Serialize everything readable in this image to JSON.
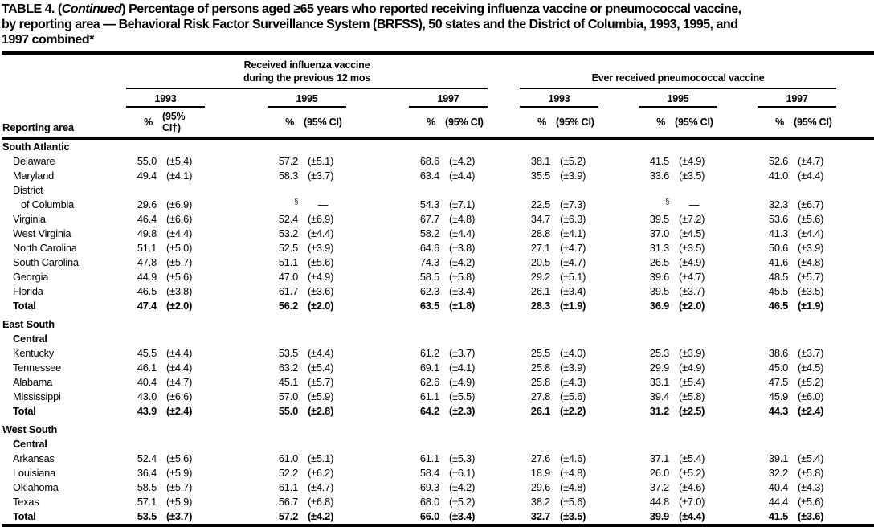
{
  "title_lines": [
    {
      "pre": "TABLE 4. (",
      "italic": "Continued",
      "post": ") Percentage of persons aged ≥65 years who reported receiving influenza vaccine or pneumococcal vaccine,"
    },
    {
      "text": "by reporting area — Behavioral Risk Factor Surveillance System (BRFSS), 50 states and the District of Columbia, 1993, 1995, and"
    },
    {
      "text": "1997 combined*"
    }
  ],
  "table": {
    "row_label_header": "Reporting area",
    "missing_marker": "§",
    "missing_dash": "—",
    "groups": [
      {
        "name": "influenza",
        "title_lines": [
          "Received influenza vaccine",
          "during the previous 12 mos"
        ],
        "years": [
          {
            "year": "1993",
            "pct": "%",
            "ci": "(95% CI†)"
          },
          {
            "year": "1995",
            "pct": "%",
            "ci": "(95% CI)"
          },
          {
            "year": "1997",
            "pct": "%",
            "ci": "(95% CI)"
          }
        ]
      },
      {
        "name": "pneumococcal",
        "title_lines": [
          "Ever received pneumococcal vaccine"
        ],
        "years": [
          {
            "year": "1993",
            "pct": "%",
            "ci": "(95% CI)"
          },
          {
            "year": "1995",
            "pct": "%",
            "ci": "(95% CI)"
          },
          {
            "year": "1997",
            "pct": "%",
            "ci": "(95% CI)"
          }
        ]
      }
    ],
    "sections": [
      {
        "heading_lines": [
          "South Atlantic"
        ],
        "rows": [
          {
            "label_lines": [
              "Delaware"
            ],
            "total": false,
            "cells": [
              [
                "55.0",
                "(±5.4)"
              ],
              [
                "57.2",
                "(±5.1)"
              ],
              [
                "68.6",
                "(±4.2)"
              ],
              [
                "38.1",
                "(±5.2)"
              ],
              [
                "41.5",
                "(±4.9)"
              ],
              [
                "52.6",
                "(±4.7)"
              ]
            ]
          },
          {
            "label_lines": [
              "Maryland"
            ],
            "total": false,
            "cells": [
              [
                "49.4",
                "(±4.1)"
              ],
              [
                "58.3",
                "(±3.7)"
              ],
              [
                "63.4",
                "(±4.4)"
              ],
              [
                "35.5",
                "(±3.9)"
              ],
              [
                "33.6",
                "(±3.5)"
              ],
              [
                "41.0",
                "(±4.4)"
              ]
            ]
          },
          {
            "label_lines": [
              "District",
              "of Columbia"
            ],
            "total": false,
            "cells": [
              [
                "29.6",
                "(±6.9)"
              ],
              [
                "§",
                "—"
              ],
              [
                "54.3",
                "(±7.1)"
              ],
              [
                "22.5",
                "(±7.3)"
              ],
              [
                "§",
                "—"
              ],
              [
                "32.3",
                "(±6.7)"
              ]
            ]
          },
          {
            "label_lines": [
              "Virginia"
            ],
            "total": false,
            "cells": [
              [
                "46.4",
                "(±6.6)"
              ],
              [
                "52.4",
                "(±6.9)"
              ],
              [
                "67.7",
                "(±4.8)"
              ],
              [
                "34.7",
                "(±6.3)"
              ],
              [
                "39.5",
                "(±7.2)"
              ],
              [
                "53.6",
                "(±5.6)"
              ]
            ]
          },
          {
            "label_lines": [
              "West Virginia"
            ],
            "total": false,
            "cells": [
              [
                "49.8",
                "(±4.4)"
              ],
              [
                "53.2",
                "(±4.4)"
              ],
              [
                "58.2",
                "(±4.4)"
              ],
              [
                "28.8",
                "(±4.1)"
              ],
              [
                "37.0",
                "(±4.5)"
              ],
              [
                "41.3",
                "(±4.4)"
              ]
            ]
          },
          {
            "label_lines": [
              "North Carolina"
            ],
            "total": false,
            "cells": [
              [
                "51.1",
                "(±5.0)"
              ],
              [
                "52.5",
                "(±3.9)"
              ],
              [
                "64.6",
                "(±3.8)"
              ],
              [
                "27.1",
                "(±4.7)"
              ],
              [
                "31.3",
                "(±3.5)"
              ],
              [
                "50.6",
                "(±3.9)"
              ]
            ]
          },
          {
            "label_lines": [
              "South Carolina"
            ],
            "total": false,
            "cells": [
              [
                "47.8",
                "(±5.7)"
              ],
              [
                "51.1",
                "(±5.6)"
              ],
              [
                "74.3",
                "(±4.2)"
              ],
              [
                "20.5",
                "(±4.7)"
              ],
              [
                "26.5",
                "(±4.9)"
              ],
              [
                "41.6",
                "(±4.8)"
              ]
            ]
          },
          {
            "label_lines": [
              "Georgia"
            ],
            "total": false,
            "cells": [
              [
                "44.9",
                "(±5.6)"
              ],
              [
                "47.0",
                "(±4.9)"
              ],
              [
                "58.5",
                "(±5.8)"
              ],
              [
                "29.2",
                "(±5.1)"
              ],
              [
                "39.6",
                "(±4.7)"
              ],
              [
                "48.5",
                "(±5.7)"
              ]
            ]
          },
          {
            "label_lines": [
              "Florida"
            ],
            "total": false,
            "cells": [
              [
                "46.5",
                "(±3.8)"
              ],
              [
                "61.7",
                "(±3.6)"
              ],
              [
                "62.3",
                "(±3.4)"
              ],
              [
                "26.1",
                "(±3.4)"
              ],
              [
                "39.5",
                "(±3.7)"
              ],
              [
                "45.5",
                "(±3.5)"
              ]
            ]
          },
          {
            "label_lines": [
              "Total"
            ],
            "total": true,
            "cells": [
              [
                "47.4",
                "(±2.0)"
              ],
              [
                "56.2",
                "(±2.0)"
              ],
              [
                "63.5",
                "(±1.8)"
              ],
              [
                "28.3",
                "(±1.9)"
              ],
              [
                "36.9",
                "(±2.0)"
              ],
              [
                "46.5",
                "(±1.9)"
              ]
            ]
          }
        ]
      },
      {
        "heading_lines": [
          "East South",
          "Central"
        ],
        "rows": [
          {
            "label_lines": [
              "Kentucky"
            ],
            "total": false,
            "cells": [
              [
                "45.5",
                "(±4.4)"
              ],
              [
                "53.5",
                "(±4.4)"
              ],
              [
                "61.2",
                "(±3.7)"
              ],
              [
                "25.5",
                "(±4.0)"
              ],
              [
                "25.3",
                "(±3.9)"
              ],
              [
                "38.6",
                "(±3.7)"
              ]
            ]
          },
          {
            "label_lines": [
              "Tennessee"
            ],
            "total": false,
            "cells": [
              [
                "46.1",
                "(±4.4)"
              ],
              [
                "63.2",
                "(±5.4)"
              ],
              [
                "69.1",
                "(±4.1)"
              ],
              [
                "25.8",
                "(±3.9)"
              ],
              [
                "29.9",
                "(±4.9)"
              ],
              [
                "45.0",
                "(±4.5)"
              ]
            ]
          },
          {
            "label_lines": [
              "Alabama"
            ],
            "total": false,
            "cells": [
              [
                "40.4",
                "(±4.7)"
              ],
              [
                "45.1",
                "(±5.7)"
              ],
              [
                "62.6",
                "(±4.9)"
              ],
              [
                "25.8",
                "(±4.3)"
              ],
              [
                "33.1",
                "(±5.4)"
              ],
              [
                "47.5",
                "(±5.2)"
              ]
            ]
          },
          {
            "label_lines": [
              "Mississippi"
            ],
            "total": false,
            "cells": [
              [
                "43.0",
                "(±6.6)"
              ],
              [
                "57.0",
                "(±5.9)"
              ],
              [
                "61.1",
                "(±5.5)"
              ],
              [
                "27.8",
                "(±5.6)"
              ],
              [
                "39.4",
                "(±5.8)"
              ],
              [
                "45.9",
                "(±6.0)"
              ]
            ]
          },
          {
            "label_lines": [
              "Total"
            ],
            "total": true,
            "cells": [
              [
                "43.9",
                "(±2.4)"
              ],
              [
                "55.0",
                "(±2.8)"
              ],
              [
                "64.2",
                "(±2.3)"
              ],
              [
                "26.1",
                "(±2.2)"
              ],
              [
                "31.2",
                "(±2.5)"
              ],
              [
                "44.3",
                "(±2.4)"
              ]
            ]
          }
        ]
      },
      {
        "heading_lines": [
          "West South",
          "Central"
        ],
        "rows": [
          {
            "label_lines": [
              "Arkansas"
            ],
            "total": false,
            "cells": [
              [
                "52.4",
                "(±5.6)"
              ],
              [
                "61.0",
                "(±5.1)"
              ],
              [
                "61.1",
                "(±5.3)"
              ],
              [
                "27.6",
                "(±4.6)"
              ],
              [
                "37.1",
                "(±5.4)"
              ],
              [
                "39.1",
                "(±5.4)"
              ]
            ]
          },
          {
            "label_lines": [
              "Louisiana"
            ],
            "total": false,
            "cells": [
              [
                "36.4",
                "(±5.9)"
              ],
              [
                "52.2",
                "(±6.2)"
              ],
              [
                "58.4",
                "(±6.1)"
              ],
              [
                "18.9",
                "(±4.8)"
              ],
              [
                "26.0",
                "(±5.2)"
              ],
              [
                "32.2",
                "(±5.8)"
              ]
            ]
          },
          {
            "label_lines": [
              "Oklahoma"
            ],
            "total": false,
            "cells": [
              [
                "58.5",
                "(±5.7)"
              ],
              [
                "61.1",
                "(±4.7)"
              ],
              [
                "69.3",
                "(±4.2)"
              ],
              [
                "29.6",
                "(±4.8)"
              ],
              [
                "37.2",
                "(±4.6)"
              ],
              [
                "40.4",
                "(±4.3)"
              ]
            ]
          },
          {
            "label_lines": [
              "Texas"
            ],
            "total": false,
            "cells": [
              [
                "57.1",
                "(±5.9)"
              ],
              [
                "56.7",
                "(±6.8)"
              ],
              [
                "68.0",
                "(±5.2)"
              ],
              [
                "38.2",
                "(±5.6)"
              ],
              [
                "44.8",
                "(±7.0)"
              ],
              [
                "44.4",
                "(±5.6)"
              ]
            ]
          },
          {
            "label_lines": [
              "Total"
            ],
            "total": true,
            "cells": [
              [
                "53.5",
                "(±3.7)"
              ],
              [
                "57.2",
                "(±4.2)"
              ],
              [
                "66.0",
                "(±3.4)"
              ],
              [
                "32.7",
                "(±3.5)"
              ],
              [
                "39.9",
                "(±4.4)"
              ],
              [
                "41.5",
                "(±3.6)"
              ]
            ]
          }
        ]
      }
    ]
  }
}
